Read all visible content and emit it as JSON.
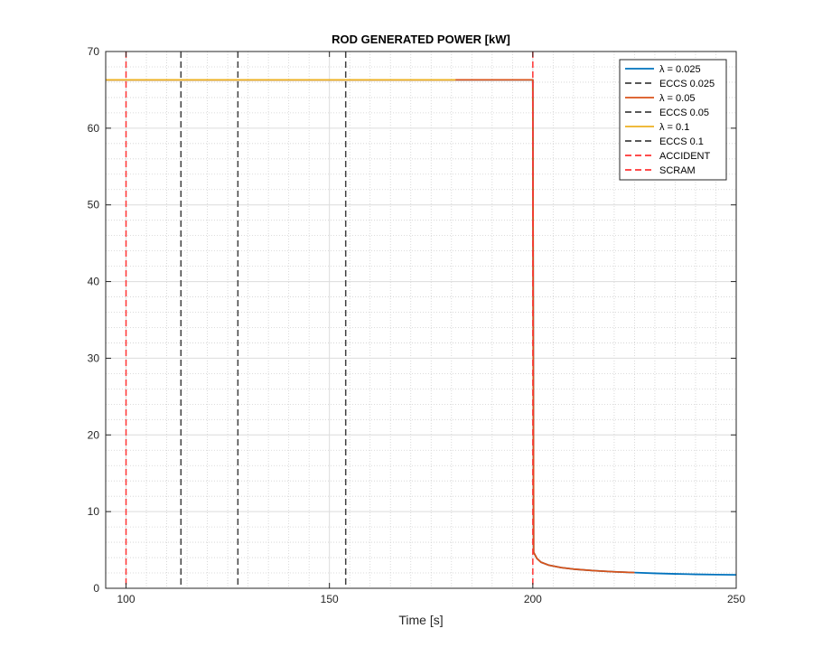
{
  "chart_data": {
    "type": "line",
    "title": "ROD GENERATED POWER [kW]",
    "xlabel": "Time [s]",
    "ylabel": "",
    "xlim": [
      95,
      250
    ],
    "ylim": [
      0,
      70
    ],
    "xticks": [
      100,
      150,
      200,
      250
    ],
    "yticks": [
      0,
      10,
      20,
      30,
      40,
      50,
      60,
      70
    ],
    "grid": true,
    "minor_grid": true,
    "legend_position": "top-right",
    "series": [
      {
        "name": "λ = 0.025",
        "color": "#0072BD",
        "style": "solid",
        "x": [
          95,
          200,
          200.2,
          201,
          202,
          204,
          207,
          210,
          215,
          220,
          225,
          230,
          235,
          240,
          245,
          250
        ],
        "y": [
          66.3,
          66.3,
          4.7,
          3.9,
          3.4,
          3.0,
          2.7,
          2.5,
          2.3,
          2.15,
          2.05,
          1.95,
          1.88,
          1.82,
          1.78,
          1.75
        ]
      },
      {
        "name": "ECCS 0.025",
        "color": "#404040",
        "style": "dashed",
        "vline_x": 154
      },
      {
        "name": "λ = 0.05",
        "color": "#D95319",
        "style": "solid",
        "x": [
          95,
          200,
          200.2,
          201,
          202,
          204,
          207,
          210,
          215,
          220,
          225
        ],
        "y": [
          66.3,
          66.3,
          4.7,
          3.9,
          3.4,
          3.0,
          2.7,
          2.5,
          2.3,
          2.15,
          2.05
        ]
      },
      {
        "name": "ECCS 0.05",
        "color": "#404040",
        "style": "dashed",
        "vline_x": 127.5
      },
      {
        "name": "λ = 0.1",
        "color": "#EDB120",
        "style": "solid",
        "x": [
          95,
          181
        ],
        "y": [
          66.3,
          66.3
        ]
      },
      {
        "name": "ECCS 0.1",
        "color": "#404040",
        "style": "dashed",
        "vline_x": 113.5
      },
      {
        "name": "ACCIDENT",
        "color": "#FF3333",
        "style": "dashed",
        "vline_x": 100
      },
      {
        "name": "SCRAM",
        "color": "#FF3333",
        "style": "dashed",
        "vline_x": 200
      }
    ]
  }
}
